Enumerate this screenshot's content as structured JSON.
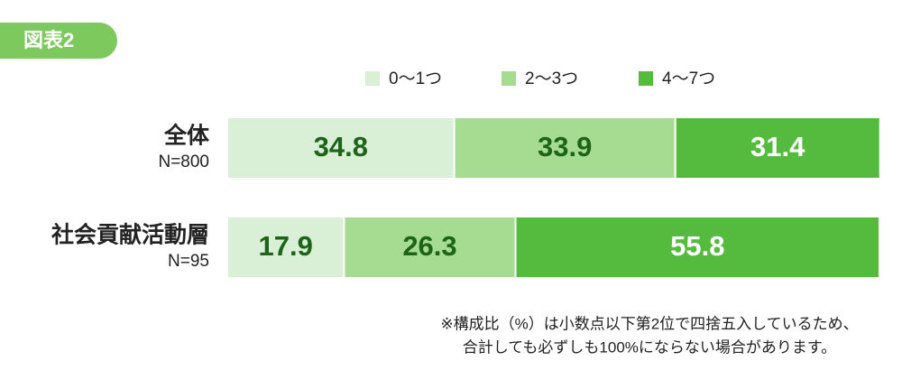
{
  "chart_data": {
    "type": "stacked-bar-horizontal",
    "badge": "図表2",
    "categories": [
      "全体",
      "社会貢献活動層"
    ],
    "category_subtitles": [
      "N=800",
      "N=95"
    ],
    "xlim": [
      0,
      100
    ],
    "series": [
      {
        "name": "0～1つ",
        "color": "#d9efd6",
        "label_color": "#1e6418",
        "values": [
          34.8,
          17.9
        ]
      },
      {
        "name": "2～3つ",
        "color": "#a6db92",
        "label_color": "#1e6418",
        "values": [
          33.9,
          26.3
        ]
      },
      {
        "name": "4～7つ",
        "color": "#55bb3f",
        "label_color": "#ffffff",
        "values": [
          31.4,
          55.8
        ]
      }
    ],
    "notes": [
      "※構成比（%）は小数点以下第2位で四捨五入しているため、",
      "合計しても必ずしも100%にならない場合があります。"
    ]
  }
}
